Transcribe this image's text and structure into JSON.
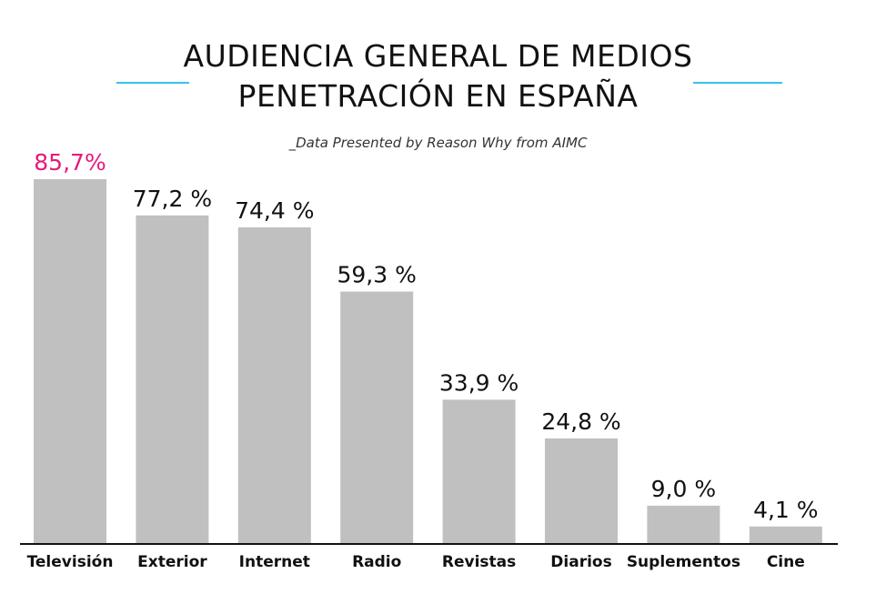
{
  "title_line_1": "AUDIENCIA GENERAL DE MEDIOS",
  "title_line_2": "PENETRACIÓN EN ESPAÑA",
  "subtitle": "_Data Presented by Reason Why from AIMC",
  "colors": {
    "bar": "#c0c0c0",
    "highlight_label": "#e8197b",
    "label": "#111111",
    "rule": "#37c2ea",
    "axis": "#111111"
  },
  "chart_data": {
    "type": "bar",
    "title": "AUDIENCIA GENERAL DE MEDIOS PENETRACIÓN EN ESPAÑA",
    "subtitle": "_Data Presented by Reason Why from AIMC",
    "categories": [
      "Televisión",
      "Exterior",
      "Internet",
      "Radio",
      "Revistas",
      "Diarios",
      "Suplementos",
      "Cine"
    ],
    "values": [
      85.7,
      77.2,
      74.4,
      59.3,
      33.9,
      24.8,
      9.0,
      4.1
    ],
    "data_labels": [
      "85,7%",
      "77,2 %",
      "74,4 %",
      "59,3 %",
      "33,9 %",
      "24,8 %",
      "9,0 %",
      "4,1 %"
    ],
    "highlight_index": 0,
    "xlabel": "",
    "ylabel": "",
    "ylim": [
      0,
      100
    ],
    "grid": false,
    "legend": "none"
  }
}
